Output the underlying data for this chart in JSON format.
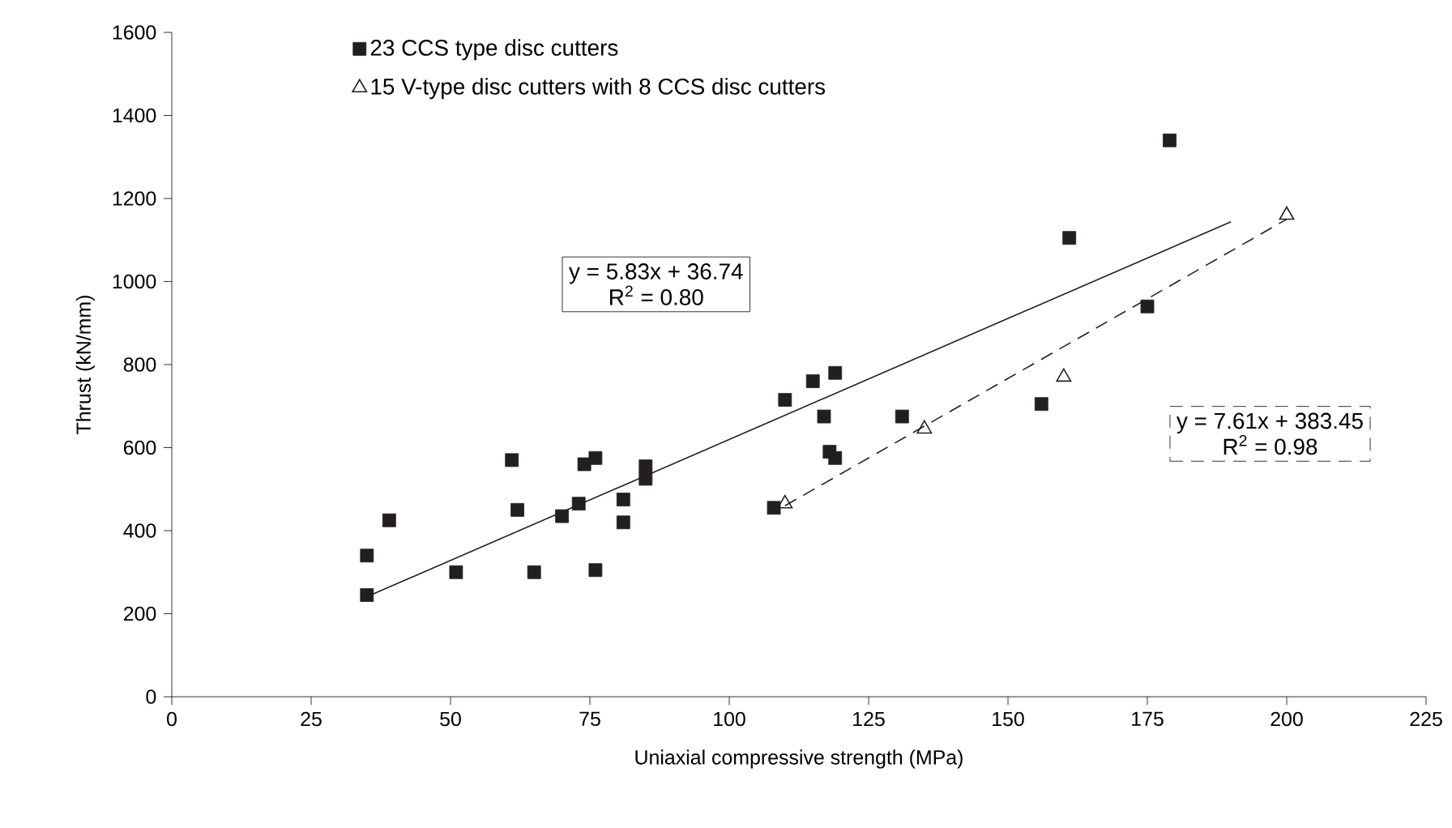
{
  "chart_data": {
    "type": "scatter",
    "xlabel": "Uniaxial compressive strength (MPa)",
    "ylabel": "Thrust (kN/mm)",
    "xlim": [
      0,
      225
    ],
    "ylim": [
      0,
      1600
    ],
    "xticks": [
      0,
      25,
      50,
      75,
      100,
      125,
      150,
      175,
      200,
      225
    ],
    "yticks": [
      0,
      200,
      400,
      600,
      800,
      1000,
      1200,
      1400,
      1600
    ],
    "grid": false,
    "legend": "top",
    "series": [
      {
        "name": "23 CCS type disc cutters",
        "color": "#231f20",
        "marker": "square",
        "x": [
          35,
          35,
          39,
          51,
          61,
          62,
          65,
          70,
          73,
          74,
          76,
          76,
          81,
          81,
          85,
          85,
          108,
          110,
          115,
          117,
          118,
          119,
          119,
          131,
          156,
          161,
          175,
          179
        ],
        "values": [
          340,
          245,
          425,
          300,
          570,
          450,
          300,
          435,
          465,
          560,
          575,
          305,
          475,
          420,
          555,
          525,
          455,
          715,
          760,
          675,
          590,
          780,
          575,
          675,
          705,
          1105,
          940,
          1340
        ]
      },
      {
        "name": "15 V-type disc cutters with 8 CCS disc cutters",
        "color": "#231f20",
        "marker": "triangle",
        "x": [
          110,
          135,
          160,
          200
        ],
        "values": [
          465,
          645,
          770,
          1160
        ]
      },
      {
        "type": "line",
        "color": "#231f20",
        "marker": "none",
        "line_style": "solid",
        "x": [
          35,
          190
        ],
        "values": [
          241,
          1144
        ]
      },
      {
        "type": "line",
        "color": "#231f20",
        "marker": "none",
        "line_style": "dashed",
        "x": [
          110,
          200
        ],
        "values": [
          460,
          1150
        ]
      }
    ],
    "annotations": [
      "y = 5.83x + 36.74",
      "R$^{2}$ = 0.80",
      "y = 7.61x + 383.45",
      "R$^{2}$ = 0.98"
    ]
  }
}
